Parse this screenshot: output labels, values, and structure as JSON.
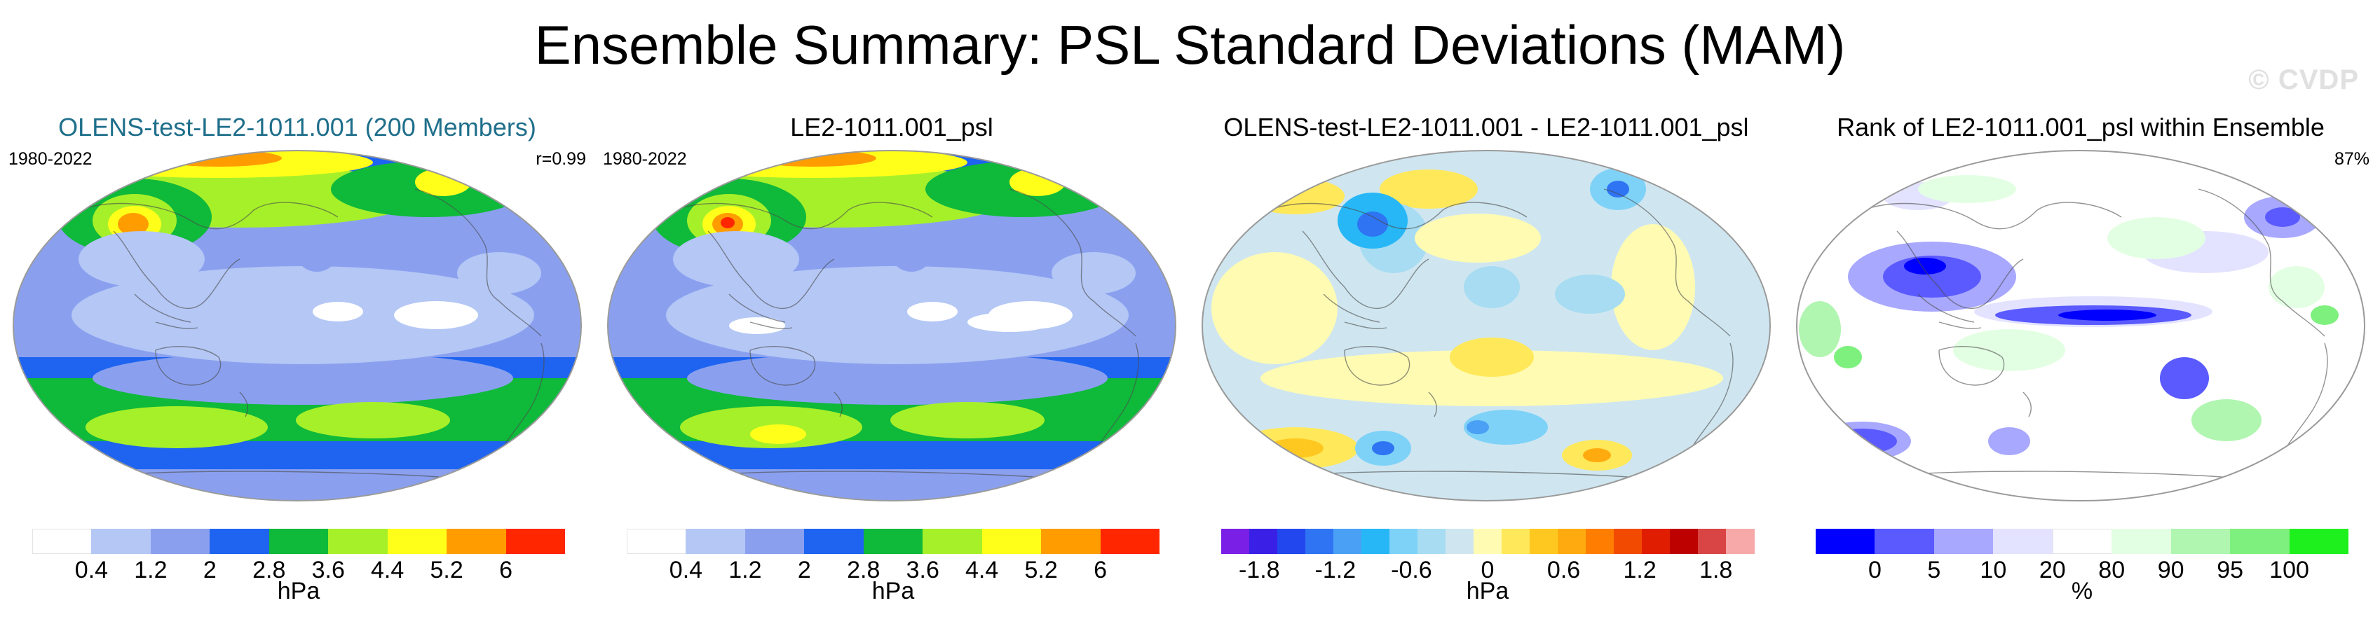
{
  "figure": {
    "title": "Ensemble Summary: PSL Standard Deviations (MAM)",
    "watermark": "© CVDP"
  },
  "panels": [
    {
      "title": "OLENS-test-LE2-1011.001 (200 Members)",
      "title_color": "#1f6f8b",
      "years": "1980-2022",
      "stat": "r=0.99",
      "map_type": "sd",
      "colorbar": {
        "colors": [
          "#ffffff",
          "#b4c7f5",
          "#8aa0ef",
          "#1e64f0",
          "#0fb93a",
          "#a6f02a",
          "#ffff1a",
          "#ff9d00",
          "#ff2600"
        ],
        "ticks": [
          "0.4",
          "1.2",
          "2",
          "2.8",
          "3.6",
          "4.4",
          "5.2",
          "6"
        ],
        "unit": "hPa"
      }
    },
    {
      "title": "LE2-1011.001_psl",
      "title_color": "#000000",
      "years": "1980-2022",
      "stat": "",
      "map_type": "sd2",
      "colorbar": {
        "colors": [
          "#ffffff",
          "#b4c7f5",
          "#8aa0ef",
          "#1e64f0",
          "#0fb93a",
          "#a6f02a",
          "#ffff1a",
          "#ff9d00",
          "#ff2600"
        ],
        "ticks": [
          "0.4",
          "1.2",
          "2",
          "2.8",
          "3.6",
          "4.4",
          "5.2",
          "6"
        ],
        "unit": "hPa"
      }
    },
    {
      "title": "OLENS-test-LE2-1011.001 - LE2-1011.001_psl",
      "title_color": "#000000",
      "years": "",
      "stat": "",
      "map_type": "diff",
      "colorbar": {
        "colors": [
          "#7a1fe6",
          "#3a1fe6",
          "#2247ee",
          "#2f74f2",
          "#4aa0f5",
          "#27b7f6",
          "#7fd2f7",
          "#a7dcf2",
          "#cfe6f0",
          "#fffbb3",
          "#ffe85a",
          "#ffc820",
          "#ffab10",
          "#ff7d00",
          "#f24a00",
          "#e01d00",
          "#bd0000",
          "#d94545",
          "#f7a9a9"
        ],
        "ticks": [
          "-1.8",
          "-1.2",
          "-0.6",
          "0",
          "0.6",
          "1.2",
          "1.8"
        ],
        "unit": "hPa"
      }
    },
    {
      "title": "Rank of LE2-1011.001_psl within Ensemble",
      "title_color": "#000000",
      "years": "",
      "stat": "87%",
      "map_type": "rank",
      "colorbar": {
        "colors": [
          "#0000ff",
          "#5a5aff",
          "#a8a8ff",
          "#e3e3ff",
          "#ffffff",
          "#e3ffe3",
          "#b0f5b0",
          "#7ef07e",
          "#1ef01e"
        ],
        "ticks": [
          "0",
          "5",
          "10",
          "20",
          "80",
          "90",
          "95",
          "100"
        ],
        "unit": "%"
      }
    }
  ]
}
